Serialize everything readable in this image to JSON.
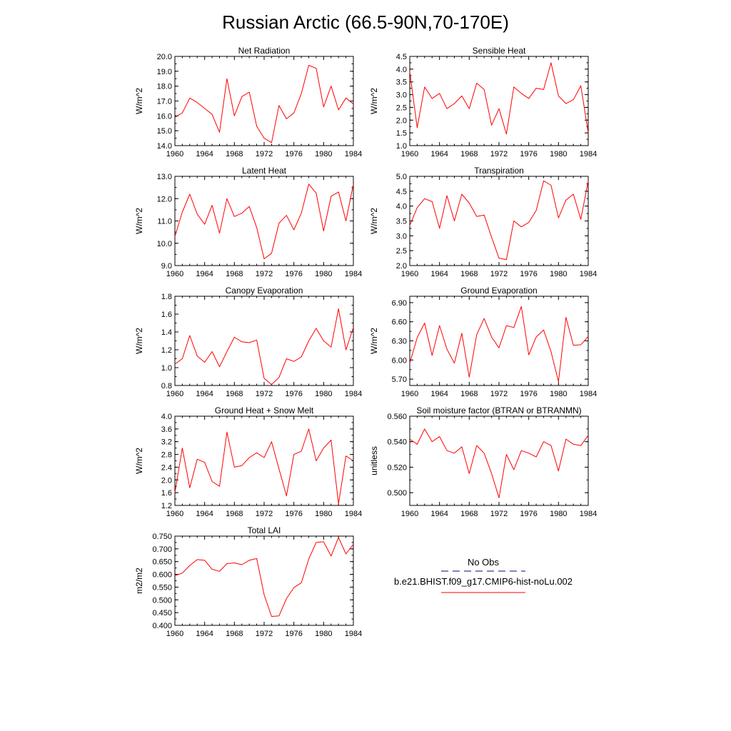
{
  "figure": {
    "title": "Russian Arctic (66.5-90N,70-170E)"
  },
  "colors": {
    "model_line": "#ff0000",
    "obs_line": "#3a3a8c",
    "axis": "#000000"
  },
  "legend": {
    "obs_label": "No Obs",
    "model_label": "b.e21.BHIST.f09_g17.CMIP6-hist-noLu.002"
  },
  "chart_data": [
    {
      "type": "line",
      "title": "Net Radiation",
      "ylabel": "W/m^2",
      "xlim": [
        1960,
        1984
      ],
      "ylim": [
        14.0,
        20.0
      ],
      "yticks": [
        "14.0",
        "15.0",
        "16.0",
        "17.0",
        "18.0",
        "19.0",
        "20.0"
      ],
      "xticks": [
        "1960",
        "1964",
        "1968",
        "1972",
        "1976",
        "1980",
        "1984"
      ],
      "x": [
        1960,
        1961,
        1962,
        1963,
        1964,
        1965,
        1966,
        1967,
        1968,
        1969,
        1970,
        1971,
        1972,
        1973,
        1974,
        1975,
        1976,
        1977,
        1978,
        1979,
        1980,
        1981,
        1982,
        1983,
        1984
      ],
      "series": [
        {
          "values": [
            15.9,
            16.2,
            17.2,
            16.9,
            16.5,
            16.1,
            14.9,
            18.5,
            16.0,
            17.3,
            17.6,
            15.3,
            14.5,
            14.2,
            16.7,
            15.8,
            16.2,
            17.5,
            19.4,
            19.2,
            16.6,
            18.0,
            16.4,
            17.2,
            16.8
          ]
        }
      ]
    },
    {
      "type": "line",
      "title": "Sensible Heat",
      "ylabel": "W/m^2",
      "xlim": [
        1960,
        1984
      ],
      "ylim": [
        1.0,
        4.5
      ],
      "yticks": [
        "1.0",
        "1.5",
        "2.0",
        "2.5",
        "3.0",
        "3.5",
        "4.0",
        "4.5"
      ],
      "xticks": [
        "1960",
        "1964",
        "1968",
        "1972",
        "1976",
        "1980",
        "1984"
      ],
      "x": [
        1960,
        1961,
        1962,
        1963,
        1964,
        1965,
        1966,
        1967,
        1968,
        1969,
        1970,
        1971,
        1972,
        1973,
        1974,
        1975,
        1976,
        1977,
        1978,
        1979,
        1980,
        1981,
        1982,
        1983,
        1984
      ],
      "series": [
        {
          "values": [
            3.9,
            1.7,
            3.3,
            2.85,
            3.05,
            2.45,
            2.65,
            2.95,
            2.45,
            3.45,
            3.2,
            1.8,
            2.45,
            1.45,
            3.3,
            3.05,
            2.85,
            3.25,
            3.2,
            4.25,
            2.95,
            2.65,
            2.8,
            3.35,
            1.5
          ]
        }
      ]
    },
    {
      "type": "line",
      "title": "Latent Heat",
      "ylabel": "W/m^2",
      "xlim": [
        1960,
        1984
      ],
      "ylim": [
        9.0,
        13.0
      ],
      "yticks": [
        "9.0",
        "10.0",
        "11.0",
        "12.0",
        "13.0"
      ],
      "xticks": [
        "1960",
        "1964",
        "1968",
        "1972",
        "1976",
        "1980",
        "1984"
      ],
      "x": [
        1960,
        1961,
        1962,
        1963,
        1964,
        1965,
        1966,
        1967,
        1968,
        1969,
        1970,
        1971,
        1972,
        1973,
        1974,
        1975,
        1976,
        1977,
        1978,
        1979,
        1980,
        1981,
        1982,
        1983,
        1984
      ],
      "series": [
        {
          "values": [
            10.3,
            11.4,
            12.2,
            11.3,
            10.85,
            11.7,
            10.45,
            12.0,
            11.2,
            11.35,
            11.65,
            10.7,
            9.3,
            9.55,
            10.9,
            11.25,
            10.6,
            11.35,
            12.65,
            12.25,
            10.55,
            12.1,
            12.3,
            11.0,
            12.65
          ]
        }
      ]
    },
    {
      "type": "line",
      "title": "Transpiration",
      "ylabel": "W/m^2",
      "xlim": [
        1960,
        1984
      ],
      "ylim": [
        2.0,
        5.0
      ],
      "yticks": [
        "2.0",
        "2.5",
        "3.0",
        "3.5",
        "4.0",
        "4.5",
        "5.0"
      ],
      "xticks": [
        "1960",
        "1964",
        "1968",
        "1972",
        "1976",
        "1980",
        "1984"
      ],
      "x": [
        1960,
        1961,
        1962,
        1963,
        1964,
        1965,
        1966,
        1967,
        1968,
        1969,
        1970,
        1971,
        1972,
        1973,
        1974,
        1975,
        1976,
        1977,
        1978,
        1979,
        1980,
        1981,
        1982,
        1983,
        1984
      ],
      "series": [
        {
          "values": [
            3.35,
            3.95,
            4.25,
            4.15,
            3.25,
            4.35,
            3.5,
            4.4,
            4.1,
            3.65,
            3.7,
            2.95,
            2.25,
            2.2,
            3.5,
            3.3,
            3.45,
            3.85,
            4.85,
            4.7,
            3.6,
            4.2,
            4.4,
            3.55,
            4.85
          ]
        }
      ]
    },
    {
      "type": "line",
      "title": "Canopy Evaporation",
      "ylabel": "W/m^2",
      "xlim": [
        1960,
        1984
      ],
      "ylim": [
        0.8,
        1.8
      ],
      "yticks": [
        "0.8",
        "1.0",
        "1.2",
        "1.4",
        "1.6",
        "1.8"
      ],
      "xticks": [
        "1960",
        "1964",
        "1968",
        "1972",
        "1976",
        "1980",
        "1984"
      ],
      "x": [
        1960,
        1961,
        1962,
        1963,
        1964,
        1965,
        1966,
        1967,
        1968,
        1969,
        1970,
        1971,
        1972,
        1973,
        1974,
        1975,
        1976,
        1977,
        1978,
        1979,
        1980,
        1981,
        1982,
        1983,
        1984
      ],
      "series": [
        {
          "values": [
            1.04,
            1.1,
            1.36,
            1.13,
            1.06,
            1.18,
            1.01,
            1.18,
            1.34,
            1.29,
            1.28,
            1.31,
            0.88,
            0.81,
            0.89,
            1.1,
            1.07,
            1.12,
            1.3,
            1.44,
            1.3,
            1.23,
            1.66,
            1.2,
            1.45
          ]
        }
      ]
    },
    {
      "type": "line",
      "title": "Ground Evaporation",
      "ylabel": "W/m^2",
      "xlim": [
        1960,
        1984
      ],
      "ylim": [
        5.6,
        7.0
      ],
      "yticks": [
        "5.70",
        "6.00",
        "6.30",
        "6.60",
        "6.90"
      ],
      "ytick_values": [
        5.7,
        6.0,
        6.3,
        6.6,
        6.9
      ],
      "xticks": [
        "1960",
        "1964",
        "1968",
        "1972",
        "1976",
        "1980",
        "1984"
      ],
      "x": [
        1960,
        1961,
        1962,
        1963,
        1964,
        1965,
        1966,
        1967,
        1968,
        1969,
        1970,
        1971,
        1972,
        1973,
        1974,
        1975,
        1976,
        1977,
        1978,
        1979,
        1980,
        1981,
        1982,
        1983,
        1984
      ],
      "series": [
        {
          "values": [
            5.95,
            6.35,
            6.58,
            6.07,
            6.54,
            6.17,
            5.95,
            6.42,
            5.73,
            6.4,
            6.65,
            6.36,
            6.19,
            6.54,
            6.51,
            6.84,
            6.08,
            6.36,
            6.47,
            6.13,
            5.66,
            6.67,
            6.23,
            6.24,
            6.37
          ]
        }
      ]
    },
    {
      "type": "line",
      "title": "Ground Heat + Snow Melt",
      "ylabel": "W/m^2",
      "xlim": [
        1960,
        1984
      ],
      "ylim": [
        1.2,
        4.0
      ],
      "yticks": [
        "1.2",
        "1.6",
        "2.0",
        "2.4",
        "2.8",
        "3.2",
        "3.6",
        "4.0"
      ],
      "xticks": [
        "1960",
        "1964",
        "1968",
        "1972",
        "1976",
        "1980",
        "1984"
      ],
      "x": [
        1960,
        1961,
        1962,
        1963,
        1964,
        1965,
        1966,
        1967,
        1968,
        1969,
        1970,
        1971,
        1972,
        1973,
        1974,
        1975,
        1976,
        1977,
        1978,
        1979,
        1980,
        1981,
        1982,
        1983,
        1984
      ],
      "series": [
        {
          "values": [
            1.6,
            3.0,
            1.75,
            2.65,
            2.55,
            1.95,
            1.8,
            3.5,
            2.4,
            2.45,
            2.7,
            2.85,
            2.7,
            3.2,
            2.35,
            1.5,
            2.8,
            2.9,
            3.6,
            2.6,
            3.0,
            3.25,
            1.25,
            2.75,
            2.6
          ]
        }
      ]
    },
    {
      "type": "line",
      "title": "Soil moisture factor (BTRAN or BTRANMN)",
      "ylabel": "unitless",
      "xlim": [
        1960,
        1984
      ],
      "ylim": [
        0.49,
        0.56
      ],
      "yticks": [
        "0.500",
        "0.520",
        "0.540",
        "0.560"
      ],
      "ytick_values": [
        0.5,
        0.52,
        0.54,
        0.56
      ],
      "xticks": [
        "1960",
        "1964",
        "1968",
        "1972",
        "1976",
        "1980",
        "1984"
      ],
      "x": [
        1960,
        1961,
        1962,
        1963,
        1964,
        1965,
        1966,
        1967,
        1968,
        1969,
        1970,
        1971,
        1972,
        1973,
        1974,
        1975,
        1976,
        1977,
        1978,
        1979,
        1980,
        1981,
        1982,
        1983,
        1984
      ],
      "series": [
        {
          "values": [
            0.542,
            0.538,
            0.55,
            0.54,
            0.544,
            0.533,
            0.531,
            0.536,
            0.515,
            0.537,
            0.531,
            0.515,
            0.496,
            0.53,
            0.518,
            0.533,
            0.531,
            0.528,
            0.54,
            0.537,
            0.517,
            0.542,
            0.538,
            0.537,
            0.545
          ]
        }
      ]
    },
    {
      "type": "line",
      "title": "Total LAI",
      "ylabel": "m2/m2",
      "xlim": [
        1960,
        1984
      ],
      "ylim": [
        0.4,
        0.75
      ],
      "yticks": [
        "0.400",
        "0.450",
        "0.500",
        "0.550",
        "0.600",
        "0.650",
        "0.700",
        "0.750"
      ],
      "xticks": [
        "1960",
        "1964",
        "1968",
        "1972",
        "1976",
        "1980",
        "1984"
      ],
      "x": [
        1960,
        1961,
        1962,
        1963,
        1964,
        1965,
        1966,
        1967,
        1968,
        1969,
        1970,
        1971,
        1972,
        1973,
        1974,
        1975,
        1976,
        1977,
        1978,
        1979,
        1980,
        1981,
        1982,
        1983,
        1984
      ],
      "series": [
        {
          "values": [
            0.595,
            0.605,
            0.635,
            0.658,
            0.655,
            0.62,
            0.612,
            0.642,
            0.645,
            0.638,
            0.655,
            0.662,
            0.52,
            0.435,
            0.437,
            0.505,
            0.548,
            0.567,
            0.66,
            0.725,
            0.728,
            0.672,
            0.745,
            0.68,
            0.718
          ]
        }
      ]
    }
  ]
}
